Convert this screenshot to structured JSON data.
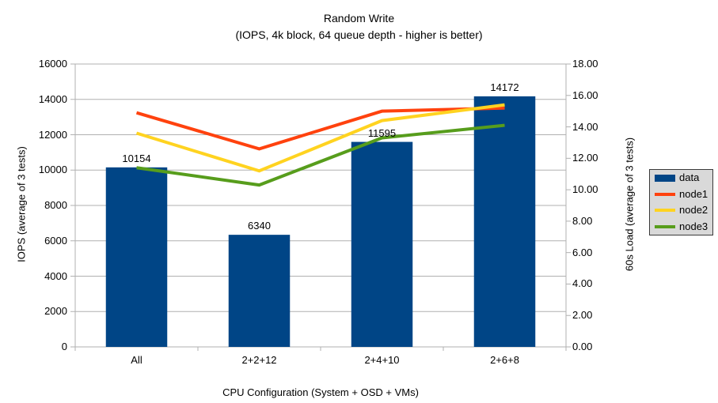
{
  "title": "Random Write",
  "subtitle": "(IOPS, 4k block, 64 queue depth - higher is better)",
  "colors": {
    "bar_blue": "#004586",
    "node1_red": "#FF420E",
    "node2_yellow": "#FFD320",
    "node3_green": "#579D1C",
    "grid_gray": "#b0b0b0",
    "legend_bg": "#d9d9d9",
    "legend_border": "#3a3a3a"
  },
  "chart_data": {
    "type": "bar+line",
    "title": "Random Write",
    "subtitle": "(IOPS, 4k block, 64 queue depth - higher is better)",
    "categories": [
      "All",
      "2+2+12",
      "2+4+10",
      "2+6+8"
    ],
    "bar_series": {
      "name": "data",
      "axis": "left",
      "color": "#004586",
      "values": [
        10154,
        6340,
        11595,
        14172
      ],
      "data_labels": [
        "10154",
        "6340",
        "11595",
        "14172"
      ]
    },
    "line_series": [
      {
        "name": "node1",
        "axis": "right",
        "color": "#FF420E",
        "values": [
          14.9,
          12.6,
          15.0,
          15.2
        ]
      },
      {
        "name": "node2",
        "axis": "right",
        "color": "#FFD320",
        "values": [
          13.6,
          11.2,
          14.4,
          15.4
        ]
      },
      {
        "name": "node3",
        "axis": "right",
        "color": "#579D1C",
        "values": [
          11.4,
          10.3,
          13.3,
          14.1
        ]
      }
    ],
    "left_axis": {
      "label": "IOPS (average of 3 tests)",
      "min": 0,
      "max": 16000,
      "step": 2000,
      "tick_labels": [
        "0",
        "2000",
        "4000",
        "6000",
        "8000",
        "10000",
        "12000",
        "14000",
        "16000"
      ]
    },
    "right_axis": {
      "label": "60s Load (average of 3 tests)",
      "min": 0,
      "max": 18,
      "step": 2,
      "tick_labels": [
        "0.00",
        "2.00",
        "4.00",
        "6.00",
        "8.00",
        "10.00",
        "12.00",
        "14.00",
        "16.00",
        "18.00"
      ]
    },
    "x_axis": {
      "label": "CPU Configuration (System + OSD + VMs)"
    },
    "grid": true,
    "legend": {
      "position": "right",
      "entries": [
        {
          "label": "data",
          "swatch": "box",
          "color": "#004586"
        },
        {
          "label": "node1",
          "swatch": "line",
          "color": "#FF420E"
        },
        {
          "label": "node2",
          "swatch": "line",
          "color": "#FFD320"
        },
        {
          "label": "node3",
          "swatch": "line",
          "color": "#579D1C"
        }
      ]
    }
  }
}
